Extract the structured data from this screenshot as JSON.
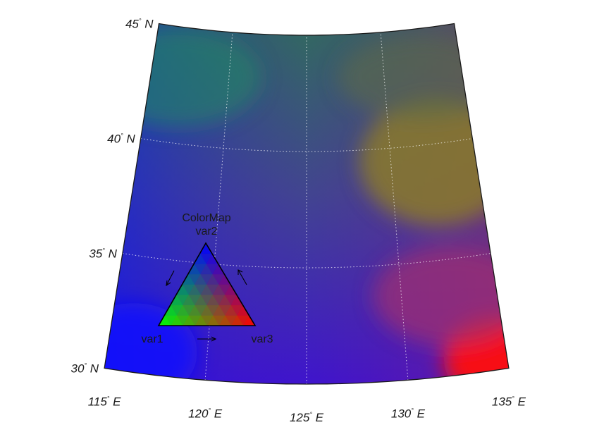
{
  "map": {
    "lon_ticks": [
      {
        "lon": 115,
        "label": "115",
        "dir": "E"
      },
      {
        "lon": 120,
        "label": "120",
        "dir": "E"
      },
      {
        "lon": 125,
        "label": "125",
        "dir": "E"
      },
      {
        "lon": 130,
        "label": "130",
        "dir": "E"
      },
      {
        "lon": 135,
        "label": "135",
        "dir": "E"
      }
    ],
    "lat_ticks": [
      {
        "lat": 30,
        "label": "30",
        "dir": "N"
      },
      {
        "lat": 35,
        "label": "35",
        "dir": "N"
      },
      {
        "lat": 40,
        "label": "40",
        "dir": "N"
      },
      {
        "lat": 45,
        "label": "45",
        "dir": "N"
      }
    ],
    "degree_symbol": "°",
    "lon_range": [
      115,
      135
    ],
    "lat_range": [
      30,
      45
    ],
    "graticule": "dotted white",
    "projection": "conic"
  },
  "colormap": {
    "title": "ColorMap",
    "var1": "var1",
    "var2": "var2",
    "var3": "var3",
    "var1_color": "#00ff00",
    "var2_color": "#0000ff",
    "var3_color": "#ff0000"
  }
}
